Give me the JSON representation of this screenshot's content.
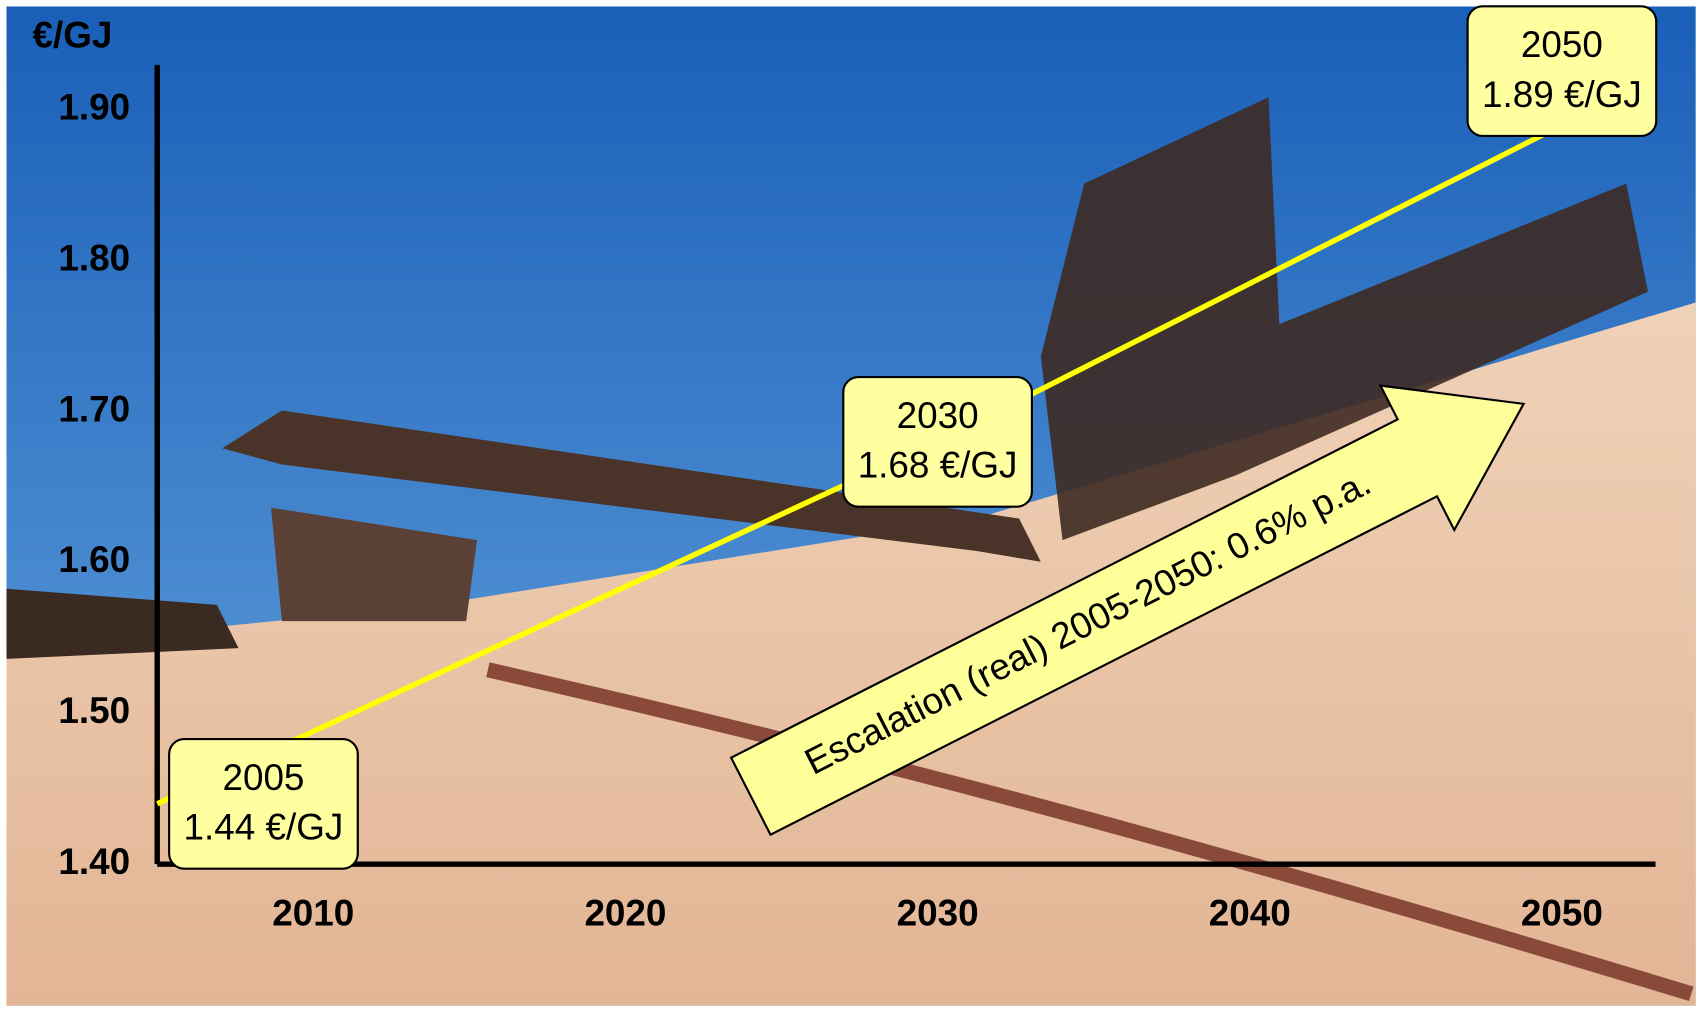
{
  "chart_data": {
    "type": "line",
    "y_label": "€/GJ",
    "x": [
      2005,
      2030,
      2050
    ],
    "values": [
      1.44,
      1.68,
      1.89
    ],
    "value_labels": [
      "1.44 €/GJ",
      "1.68 €/GJ",
      "1.89 €/GJ"
    ],
    "color": "#ffff00",
    "xlim": [
      2005,
      2053
    ],
    "xticks": [
      2010,
      2020,
      2030,
      2040,
      2050
    ],
    "ylim": [
      1.4,
      1.93
    ],
    "yticks": [
      {
        "value": 1.4,
        "label": "1.40"
      },
      {
        "value": 1.5,
        "label": "1.50"
      },
      {
        "value": 1.6,
        "label": "1.60"
      },
      {
        "value": 1.7,
        "label": "1.70"
      },
      {
        "value": 1.8,
        "label": "1.80"
      },
      {
        "value": 1.9,
        "label": "1.90"
      }
    ],
    "annotation": "Escalation (real) 2005-2050: 0.6% p.a."
  }
}
